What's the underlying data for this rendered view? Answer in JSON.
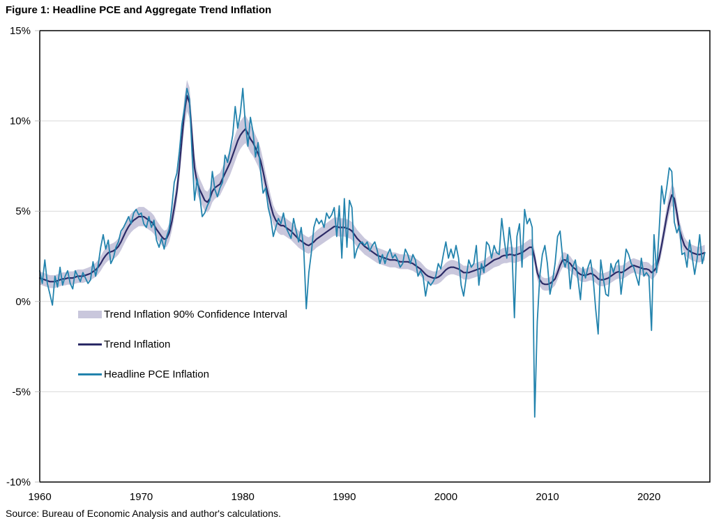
{
  "title": "Figure 1: Headline PCE and Aggregate Trend Inflation",
  "source": "Source: Bureau of Economic Analysis and author's calculations.",
  "legend": {
    "position": "inside-left",
    "items": [
      {
        "label": "Trend Inflation 90% Confidence Interval",
        "type": "band"
      },
      {
        "label": "Trend Inflation",
        "type": "line"
      },
      {
        "label": "Headline PCE Inflation",
        "type": "line"
      }
    ]
  },
  "colors": {
    "trend": "#2b2a66",
    "headline": "#2283ad",
    "band": "#c9c7dc",
    "grid": "#d9d9d9",
    "tick": "#bfbfbf",
    "border": "#000000",
    "text": "#000000"
  },
  "chart_data": {
    "type": "line",
    "title": "Figure 1: Headline PCE and Aggregate Trend Inflation",
    "xlabel": "",
    "ylabel": "",
    "grid": "horizontal",
    "legend_position": "inside-left",
    "x_axis": {
      "min": 1960,
      "max": 2026,
      "tick_values": [
        1960,
        1970,
        1980,
        1990,
        2000,
        2010,
        2020
      ],
      "tick_labels": [
        "1960",
        "1970",
        "1980",
        "1990",
        "2000",
        "2010",
        "2020"
      ]
    },
    "y_axis": {
      "min": -10,
      "max": 15,
      "tick_values": [
        15,
        10,
        5,
        0,
        -5,
        -10
      ],
      "tick_labels": [
        "15%",
        "10%",
        "5%",
        "0%",
        "-5%",
        "-10%"
      ],
      "gridline_values": [
        10,
        5,
        0,
        -5
      ]
    },
    "frequency": "quarterly",
    "x_start": 1960.0,
    "x_step": 0.25,
    "series": [
      {
        "name": "Trend Inflation",
        "values": [
          1.3,
          1.25,
          1.2,
          1.15,
          1.1,
          1.1,
          1.1,
          1.15,
          1.2,
          1.25,
          1.25,
          1.3,
          1.3,
          1.3,
          1.35,
          1.4,
          1.4,
          1.4,
          1.45,
          1.5,
          1.55,
          1.65,
          1.75,
          1.9,
          2.1,
          2.35,
          2.55,
          2.7,
          2.75,
          2.8,
          2.9,
          3.05,
          3.3,
          3.6,
          3.9,
          4.15,
          4.35,
          4.5,
          4.6,
          4.7,
          4.7,
          4.7,
          4.6,
          4.5,
          4.4,
          4.25,
          4.0,
          3.8,
          3.6,
          3.45,
          3.5,
          3.8,
          4.4,
          5.2,
          6.1,
          7.4,
          9.0,
          10.5,
          11.4,
          11.0,
          9.2,
          7.4,
          6.6,
          6.2,
          5.9,
          5.6,
          5.5,
          5.7,
          6.1,
          6.3,
          6.4,
          6.5,
          6.8,
          7.1,
          7.4,
          7.7,
          8.1,
          8.5,
          8.9,
          9.2,
          9.4,
          9.55,
          9.3,
          9.0,
          8.8,
          8.5,
          8.2,
          7.8,
          7.2,
          6.5,
          5.9,
          5.3,
          4.8,
          4.5,
          4.3,
          4.2,
          4.2,
          4.1,
          4.0,
          3.9,
          3.75,
          3.6,
          3.45,
          3.35,
          3.25,
          3.15,
          3.1,
          3.2,
          3.3,
          3.45,
          3.55,
          3.65,
          3.75,
          3.85,
          3.95,
          4.05,
          4.15,
          4.15,
          4.1,
          4.1,
          4.1,
          4.05,
          4.0,
          3.9,
          3.7,
          3.5,
          3.35,
          3.2,
          3.05,
          2.95,
          2.85,
          2.75,
          2.65,
          2.55,
          2.5,
          2.45,
          2.4,
          2.35,
          2.3,
          2.3,
          2.3,
          2.25,
          2.2,
          2.2,
          2.2,
          2.2,
          2.15,
          2.1,
          2.0,
          1.9,
          1.8,
          1.65,
          1.5,
          1.4,
          1.35,
          1.3,
          1.3,
          1.35,
          1.45,
          1.6,
          1.75,
          1.85,
          1.9,
          1.9,
          1.85,
          1.8,
          1.7,
          1.6,
          1.6,
          1.6,
          1.65,
          1.7,
          1.75,
          1.8,
          1.85,
          1.9,
          2.0,
          2.1,
          2.2,
          2.3,
          2.35,
          2.4,
          2.5,
          2.55,
          2.55,
          2.6,
          2.6,
          2.55,
          2.6,
          2.65,
          2.7,
          2.8,
          2.9,
          3.0,
          3.0,
          2.4,
          1.6,
          1.2,
          1.0,
          0.95,
          0.95,
          1.0,
          1.1,
          1.25,
          1.6,
          2.0,
          2.3,
          2.3,
          2.2,
          2.1,
          1.9,
          1.8,
          1.6,
          1.5,
          1.45,
          1.45,
          1.5,
          1.55,
          1.5,
          1.4,
          1.25,
          1.2,
          1.2,
          1.25,
          1.3,
          1.4,
          1.5,
          1.6,
          1.65,
          1.6,
          1.65,
          1.75,
          1.85,
          1.95,
          2.0,
          1.95,
          1.9,
          1.85,
          1.8,
          1.8,
          1.75,
          1.6,
          1.7,
          1.9,
          2.4,
          3.1,
          3.9,
          4.7,
          5.4,
          5.9,
          5.7,
          4.9,
          4.0,
          3.5,
          3.1,
          2.9,
          2.8,
          2.7,
          2.65,
          2.6,
          2.6,
          2.65,
          2.7
        ]
      },
      {
        "name": "Headline PCE Inflation",
        "values": [
          1.7,
          1.0,
          2.3,
          1.0,
          0.4,
          -0.2,
          1.4,
          0.8,
          1.9,
          0.9,
          1.4,
          1.7,
          1.0,
          0.7,
          1.7,
          1.4,
          1.1,
          1.6,
          1.3,
          1.0,
          1.2,
          2.2,
          1.4,
          2.0,
          3.0,
          3.7,
          2.9,
          3.4,
          2.1,
          2.4,
          3.0,
          3.3,
          3.9,
          4.1,
          4.4,
          4.7,
          4.3,
          4.9,
          5.1,
          4.8,
          4.9,
          4.3,
          4.1,
          4.7,
          4.1,
          4.5,
          3.4,
          3.0,
          3.5,
          2.9,
          3.6,
          4.0,
          5.2,
          6.6,
          7.1,
          8.3,
          9.8,
          10.7,
          11.8,
          11.2,
          8.2,
          5.6,
          6.8,
          5.9,
          4.7,
          4.9,
          5.3,
          5.6,
          7.2,
          6.2,
          5.8,
          6.3,
          6.6,
          8.1,
          7.7,
          8.4,
          9.2,
          10.8,
          9.6,
          10.4,
          11.8,
          9.8,
          8.6,
          10.2,
          9.4,
          8.0,
          8.8,
          7.2,
          6.0,
          6.3,
          5.2,
          4.6,
          3.6,
          4.1,
          4.6,
          4.3,
          4.9,
          4.1,
          3.8,
          3.5,
          4.6,
          3.9,
          3.3,
          4.1,
          2.9,
          -0.4,
          1.6,
          2.7,
          4.1,
          4.6,
          4.3,
          4.5,
          4.1,
          4.9,
          4.6,
          4.8,
          5.2,
          3.6,
          5.3,
          2.4,
          5.7,
          3.0,
          5.6,
          5.2,
          2.4,
          2.9,
          3.2,
          3.3,
          3.1,
          3.3,
          2.8,
          3.1,
          3.3,
          2.8,
          2.1,
          2.6,
          2.1,
          2.6,
          2.9,
          2.4,
          2.6,
          2.3,
          1.9,
          2.1,
          2.9,
          2.6,
          2.1,
          2.6,
          2.3,
          1.4,
          1.7,
          1.4,
          0.3,
          1.1,
          0.9,
          1.1,
          1.4,
          2.1,
          1.8,
          2.6,
          3.3,
          2.4,
          2.9,
          2.4,
          3.1,
          2.4,
          0.9,
          0.3,
          1.3,
          2.3,
          1.9,
          2.1,
          3.1,
          0.9,
          2.1,
          1.6,
          3.3,
          3.1,
          2.4,
          3.1,
          2.7,
          2.6,
          4.6,
          3.4,
          2.4,
          4.1,
          2.9,
          -0.9,
          3.6,
          4.3,
          1.9,
          5.1,
          4.3,
          4.6,
          4.1,
          -6.4,
          -1.1,
          1.4,
          2.6,
          3.1,
          2.1,
          0.4,
          1.1,
          2.1,
          3.6,
          3.9,
          2.4,
          1.9,
          2.6,
          0.7,
          1.9,
          2.3,
          1.3,
          0.1,
          1.9,
          1.3,
          1.9,
          2.3,
          1.3,
          -0.4,
          -1.8,
          2.3,
          1.3,
          0.4,
          0.3,
          2.1,
          1.6,
          2.1,
          2.3,
          0.4,
          1.6,
          2.9,
          2.6,
          2.1,
          1.9,
          1.4,
          0.9,
          2.4,
          1.4,
          1.6,
          1.4,
          -1.6,
          3.7,
          1.6,
          3.9,
          6.4,
          5.4,
          6.3,
          7.4,
          7.2,
          4.4,
          3.8,
          4.2,
          2.6,
          2.7,
          1.9,
          3.4,
          2.5,
          1.5,
          2.4,
          3.7,
          2.1,
          2.7
        ]
      }
    ],
    "confidence_interval": {
      "name": "Trend Inflation 90% Confidence Interval",
      "around_series": "Trend Inflation",
      "halfwidth_base": 0.3,
      "halfwidth_per_trend_unit": 0.05
    }
  }
}
